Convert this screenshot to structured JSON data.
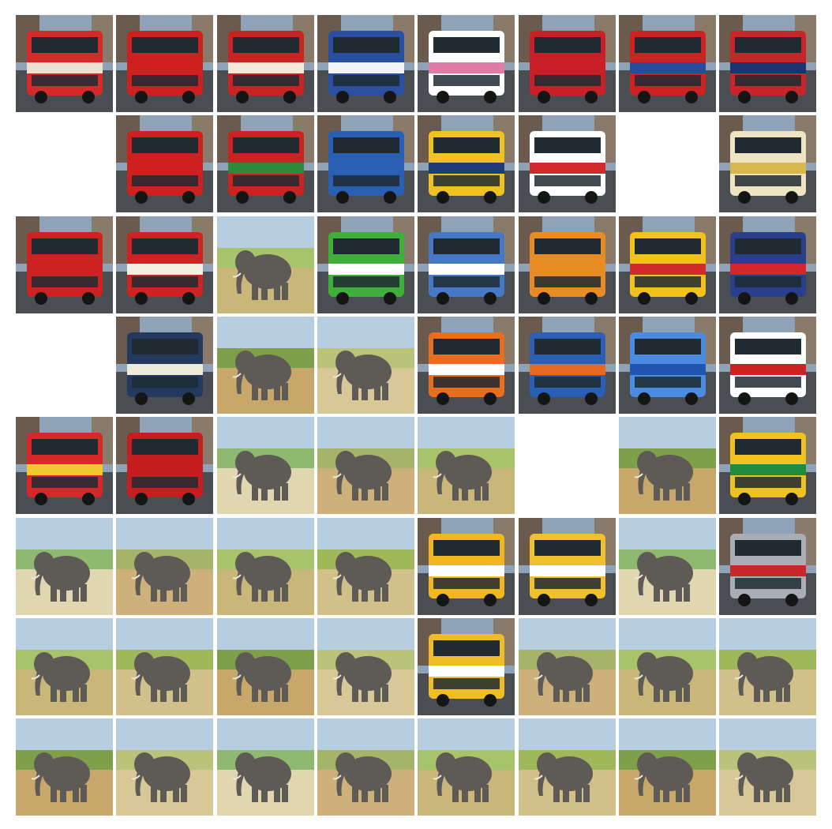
{
  "grid": {
    "columns": 8,
    "rows": 8,
    "tiles": [
      "bus",
      "bus",
      "bus",
      "bus",
      "bus",
      "bus",
      "bus",
      "bus",
      "empty",
      "bus",
      "bus",
      "bus",
      "bus",
      "bus",
      "empty",
      "bus",
      "bus",
      "bus",
      "elephant",
      "bus",
      "bus",
      "bus",
      "bus",
      "bus",
      "empty",
      "bus",
      "elephant",
      "elephant",
      "bus",
      "bus",
      "bus",
      "bus",
      "bus",
      "bus",
      "elephant",
      "elephant",
      "elephant",
      "empty",
      "elephant",
      "bus",
      "elephant",
      "elephant",
      "elephant",
      "elephant",
      "bus",
      "bus",
      "elephant",
      "bus",
      "elephant",
      "elephant",
      "elephant",
      "elephant",
      "bus",
      "elephant",
      "elephant",
      "elephant",
      "elephant",
      "elephant",
      "elephant",
      "elephant",
      "elephant",
      "elephant",
      "elephant",
      "elephant"
    ],
    "bus_colors": [
      [
        "#d42a2a",
        "#e9e2d0"
      ],
      [
        "#cf2020",
        "#cf2020"
      ],
      [
        "#c82424",
        "#f1ead8"
      ],
      [
        "#2b4fa0",
        "#f4f4f4"
      ],
      [
        "#ffffff",
        "#e27aa7"
      ],
      [
        "#c91f26",
        "#c91f26"
      ],
      [
        "#cc2222",
        "#2a4a9a"
      ],
      [
        "#c8252a",
        "#1d3370"
      ],
      [
        "#cf2020",
        "#cf2020"
      ],
      [
        "#cc2222",
        "#2e8a3a"
      ],
      [
        "#2a60b4",
        "#2a60b4"
      ],
      [
        "#f0c21f",
        "#1e3c78"
      ],
      [
        "#ffffff",
        "#d22a2a"
      ],
      [
        "#efe4c2",
        "#d8b84a"
      ],
      [
        "#cc2222",
        "#cc2222"
      ],
      [
        "#cf2323",
        "#f4eee0"
      ],
      [
        "#3fae3a",
        "#ffffff"
      ],
      [
        "#4678c8",
        "#ffffff"
      ],
      [
        "#e98b23",
        "#e98b23"
      ],
      [
        "#f2c21c",
        "#d32b2b"
      ],
      [
        "#2a3f8c",
        "#d3262a"
      ],
      [
        "#233a5e",
        "#ecead8"
      ],
      [
        "#e86e1f",
        "#ffffff"
      ],
      [
        "#2b5fb6",
        "#e46a22"
      ],
      [
        "#4b8be0",
        "#1f55b0"
      ],
      [
        "#ffffff",
        "#cc2222"
      ],
      [
        "#d62828",
        "#f0c830"
      ],
      [
        "#c61e1e",
        "#c61e1e"
      ],
      [
        "#f0c21f",
        "#1e8c3c"
      ],
      [
        "#f2b71f",
        "#ffffff"
      ],
      [
        "#f0c12a",
        "#ffffff"
      ],
      [
        "#a9adb5",
        "#c9262a"
      ],
      [
        "#f0bd27",
        "#ffffff"
      ]
    ]
  }
}
